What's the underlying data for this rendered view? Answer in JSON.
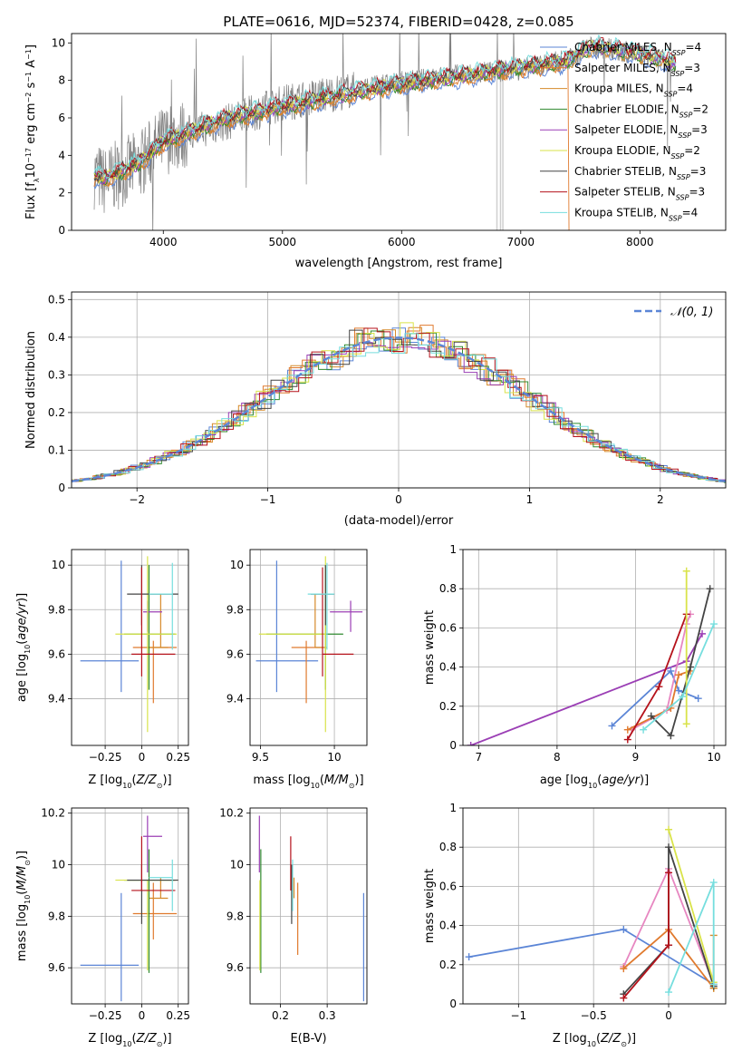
{
  "figure_title": "PLATE=0616, MJD=52374, FIBERID=0428, z=0.085",
  "colors": {
    "Chabrier MILES": "#5b85d6",
    "Salpeter MILES": "#e07a2e",
    "Kroupa MILES": "#d68a2a",
    "Chabrier ELODIE": "#2f8a2f",
    "Salpeter ELODIE": "#9b3fb5",
    "Kroupa ELODIE": "#d9e34a",
    "Chabrier STELIB": "#444444",
    "Salpeter STELIB": "#b5121b",
    "Kroupa STELIB": "#76dede",
    "data": "#808080",
    "pink": "#e787c1",
    "gaussian": "#5b85d6"
  },
  "legend_spec": [
    {
      "label": "Chabrier MILES, N",
      "sub": "SSP",
      "suffix": "=4",
      "key": "Chabrier MILES"
    },
    {
      "label": "Salpeter MILES, N",
      "sub": "SSP",
      "suffix": "=3",
      "key": "Salpeter MILES"
    },
    {
      "label": "Kroupa MILES, N",
      "sub": "SSP",
      "suffix": "=4",
      "key": "Kroupa MILES"
    },
    {
      "label": "Chabrier ELODIE, N",
      "sub": "SSP",
      "suffix": "=2",
      "key": "Chabrier ELODIE"
    },
    {
      "label": "Salpeter ELODIE, N",
      "sub": "SSP",
      "suffix": "=3",
      "key": "Salpeter ELODIE"
    },
    {
      "label": "Kroupa ELODIE, N",
      "sub": "SSP",
      "suffix": "=2",
      "key": "Kroupa ELODIE"
    },
    {
      "label": "Chabrier STELIB, N",
      "sub": "SSP",
      "suffix": "=3",
      "key": "Chabrier STELIB"
    },
    {
      "label": "Salpeter STELIB, N",
      "sub": "SSP",
      "suffix": "=3",
      "key": "Salpeter STELIB"
    },
    {
      "label": "Kroupa STELIB, N",
      "sub": "SSP",
      "suffix": "=4",
      "key": "Kroupa STELIB"
    }
  ],
  "chart_data": [
    {
      "id": "spectrum",
      "type": "line",
      "title": "PLATE=0616, MJD=52374, FIBERID=0428, z=0.085",
      "xlabel": "wavelength [Angstrom, rest frame]",
      "ylabel": "Flux [f_λ 10^-17 erg cm^-2 s^-1 A^-1]",
      "xlim": [
        3230,
        8720
      ],
      "ylim": [
        0,
        10.5
      ],
      "xticks": [
        4000,
        5000,
        6000,
        7000,
        8000
      ],
      "yticks": [
        0,
        2,
        4,
        6,
        8,
        10
      ],
      "grid": false,
      "legend": "upper right",
      "data_trend": {
        "x": [
          3420,
          3500,
          3800,
          4000,
          4500,
          5000,
          5500,
          6000,
          6500,
          7000,
          7400,
          7600,
          8000,
          8300
        ],
        "y": [
          3.0,
          2.6,
          3.5,
          4.8,
          5.7,
          6.8,
          7.4,
          7.9,
          8.3,
          8.6,
          9.1,
          9.8,
          9.4,
          8.9
        ]
      },
      "model_trend": {
        "x": [
          3420,
          3500,
          3800,
          4000,
          4500,
          5000,
          5500,
          6000,
          6500,
          7000,
          7400
        ],
        "y": [
          2.9,
          2.7,
          3.6,
          4.7,
          5.9,
          6.6,
          7.2,
          7.8,
          8.2,
          8.7,
          9.0
        ]
      },
      "mask_lines": [
        6800,
        6830,
        6850
      ]
    },
    {
      "id": "residuals",
      "type": "histogram",
      "xlabel": "(data-model)/error",
      "ylabel": "Normed distribution",
      "xlim": [
        -2.5,
        2.5
      ],
      "ylim": [
        0,
        0.52
      ],
      "xticks": [
        -2,
        -1,
        0,
        1,
        2
      ],
      "yticks": [
        0,
        0.1,
        0.2,
        0.3,
        0.4,
        0.5
      ],
      "grid": true,
      "legend_label": "𝒩(0, 1)",
      "legend": "upper right",
      "gaussian": {
        "mean": 0,
        "sigma": 1
      }
    },
    {
      "id": "age_vs_Z",
      "type": "errorbar",
      "xlabel": "Z [log10(Z/Z⊙)]",
      "ylabel": "age [log10(age/yr)]",
      "xlim": [
        -0.48,
        0.32
      ],
      "ylim": [
        9.19,
        10.07
      ],
      "xticks": [
        -0.25,
        0.0,
        0.25
      ],
      "yticks": [
        9.4,
        9.6,
        9.8,
        10.0
      ],
      "grid": true,
      "points": [
        {
          "key": "Chabrier MILES",
          "x": -0.14,
          "y": 9.57,
          "xerr": [
            0.28,
            0.12
          ],
          "yerr": [
            0.14,
            0.45
          ]
        },
        {
          "key": "Salpeter MILES",
          "x": 0.08,
          "y": 9.63,
          "xerr": [
            0.14,
            0.16
          ],
          "yerr": [
            0.25,
            0.03
          ]
        },
        {
          "key": "Kroupa MILES",
          "x": 0.13,
          "y": 9.63,
          "xerr": [
            0.08,
            0.05
          ],
          "yerr": [
            0.0,
            0.24
          ]
        },
        {
          "key": "Chabrier ELODIE",
          "x": 0.05,
          "y": 9.69,
          "xerr": [
            0.17,
            0.18
          ],
          "yerr": [
            0.25,
            0.31
          ]
        },
        {
          "key": "Salpeter ELODIE",
          "x": 0.04,
          "y": 9.79,
          "xerr": [
            0.03,
            0.1
          ],
          "yerr": [
            0.09,
            0.05
          ]
        },
        {
          "key": "Kroupa ELODIE",
          "x": 0.04,
          "y": 9.69,
          "xerr": [
            0.22,
            0.2
          ],
          "yerr": [
            0.44,
            0.35
          ]
        },
        {
          "key": "Chabrier STELIB",
          "x": 0.0,
          "y": 9.87,
          "xerr": [
            0.1,
            0.25
          ],
          "yerr": [
            0.14,
            0.13
          ]
        },
        {
          "key": "Salpeter STELIB",
          "x": 0.0,
          "y": 9.6,
          "xerr": [
            0.07,
            0.23
          ],
          "yerr": [
            0.1,
            0.39
          ]
        },
        {
          "key": "Kroupa STELIB",
          "x": 0.21,
          "y": 9.87,
          "xerr": [
            0.16,
            0.0
          ],
          "yerr": [
            0.25,
            0.14
          ]
        }
      ]
    },
    {
      "id": "age_vs_mass",
      "type": "errorbar",
      "xlabel": "mass [log10(M/M⊙)]",
      "ylabel": "",
      "xlim": [
        9.43,
        10.22
      ],
      "ylim": [
        9.19,
        10.07
      ],
      "xticks": [
        9.5,
        10.0
      ],
      "yticks": [
        9.4,
        9.6,
        9.8,
        10.0
      ],
      "grid": true,
      "points": [
        {
          "key": "Chabrier MILES",
          "x": 9.61,
          "y": 9.57,
          "xerr": [
            0.14,
            0.28
          ],
          "yerr": [
            0.14,
            0.45
          ]
        },
        {
          "key": "Salpeter MILES",
          "x": 9.81,
          "y": 9.63,
          "xerr": [
            0.1,
            0.12
          ],
          "yerr": [
            0.25,
            0.03
          ]
        },
        {
          "key": "Kroupa MILES",
          "x": 9.87,
          "y": 9.63,
          "xerr": [
            0.0,
            0.08
          ],
          "yerr": [
            0.0,
            0.24
          ]
        },
        {
          "key": "Chabrier ELODIE",
          "x": 9.94,
          "y": 9.69,
          "xerr": [
            0.4,
            0.12
          ],
          "yerr": [
            0.25,
            0.31
          ]
        },
        {
          "key": "Salpeter ELODIE",
          "x": 10.11,
          "y": 9.79,
          "xerr": [
            0.14,
            0.08
          ],
          "yerr": [
            0.09,
            0.05
          ]
        },
        {
          "key": "Kroupa ELODIE",
          "x": 9.94,
          "y": 9.69,
          "xerr": [
            0.45,
            0.0
          ],
          "yerr": [
            0.44,
            0.35
          ]
        },
        {
          "key": "Chabrier STELIB",
          "x": 9.94,
          "y": 9.87,
          "xerr": [
            0.1,
            0.06
          ],
          "yerr": [
            0.14,
            0.13
          ]
        },
        {
          "key": "Salpeter STELIB",
          "x": 9.92,
          "y": 9.6,
          "xerr": [
            0.0,
            0.21
          ],
          "yerr": [
            0.1,
            0.39
          ]
        },
        {
          "key": "Kroupa STELIB",
          "x": 9.95,
          "y": 9.87,
          "xerr": [
            0.13,
            0.05
          ],
          "yerr": [
            0.25,
            0.14
          ]
        }
      ]
    },
    {
      "id": "weight_vs_age",
      "type": "line",
      "xlabel": "age [log10(age/yr)]",
      "ylabel": "mass weight",
      "xlim": [
        6.8,
        10.15
      ],
      "ylim": [
        0,
        1
      ],
      "xticks": [
        7,
        8,
        9,
        10
      ],
      "yticks": [
        0.0,
        0.2,
        0.4,
        0.6,
        0.8,
        1.0
      ],
      "grid": true,
      "series": [
        {
          "key": "Salpeter ELODIE",
          "x": [
            6.9,
            9.65,
            9.85
          ],
          "y": [
            0.0,
            0.43,
            0.57
          ]
        },
        {
          "key": "Chabrier MILES",
          "x": [
            8.7,
            9.45,
            9.55,
            9.8
          ],
          "y": [
            0.1,
            0.38,
            0.28,
            0.24
          ]
        },
        {
          "key": "pink",
          "x": [
            8.95,
            9.4,
            9.65,
            9.7
          ],
          "y": [
            0.08,
            0.18,
            0.62,
            0.67
          ]
        },
        {
          "key": "Salpeter MILES",
          "x": [
            8.9,
            9.45,
            9.55,
            9.7
          ],
          "y": [
            0.08,
            0.19,
            0.36,
            0.38
          ]
        },
        {
          "key": "Chabrier STELIB",
          "x": [
            9.2,
            9.45,
            9.7,
            9.95
          ],
          "y": [
            0.15,
            0.05,
            0.4,
            0.8
          ]
        },
        {
          "key": "Salpeter STELIB",
          "x": [
            8.9,
            9.3,
            9.65
          ],
          "y": [
            0.03,
            0.3,
            0.67
          ]
        },
        {
          "key": "Kroupa ELODIE",
          "x": [
            9.65,
            9.65
          ],
          "y": [
            0.11,
            0.89
          ]
        },
        {
          "key": "Kroupa STELIB",
          "x": [
            9.1,
            9.6,
            10.0
          ],
          "y": [
            0.08,
            0.25,
            0.62
          ]
        }
      ]
    },
    {
      "id": "mass_vs_Z",
      "type": "errorbar",
      "xlabel": "Z [log10(Z/Z⊙)]",
      "ylabel": "mass [log10(M/M⊙)]",
      "xlim": [
        -0.48,
        0.32
      ],
      "ylim": [
        9.46,
        10.22
      ],
      "xticks": [
        -0.25,
        0.0,
        0.25
      ],
      "yticks": [
        9.6,
        9.8,
        10.0,
        10.2
      ],
      "grid": true,
      "points": [
        {
          "key": "Chabrier MILES",
          "x": -0.14,
          "y": 9.61,
          "xerr": [
            0.28,
            0.12
          ],
          "yerr": [
            0.14,
            0.28
          ]
        },
        {
          "key": "Salpeter MILES",
          "x": 0.08,
          "y": 9.81,
          "xerr": [
            0.14,
            0.16
          ],
          "yerr": [
            0.1,
            0.12
          ]
        },
        {
          "key": "Kroupa MILES",
          "x": 0.13,
          "y": 9.87,
          "xerr": [
            0.08,
            0.05
          ],
          "yerr": [
            0.0,
            0.08
          ]
        },
        {
          "key": "Chabrier ELODIE",
          "x": 0.05,
          "y": 9.94,
          "xerr": [
            0.17,
            0.18
          ],
          "yerr": [
            0.36,
            0.12
          ]
        },
        {
          "key": "Salpeter ELODIE",
          "x": 0.04,
          "y": 10.11,
          "xerr": [
            0.03,
            0.1
          ],
          "yerr": [
            0.14,
            0.08
          ]
        },
        {
          "key": "Kroupa ELODIE",
          "x": 0.04,
          "y": 9.94,
          "xerr": [
            0.22,
            0.2
          ],
          "yerr": [
            0.35,
            0.0
          ]
        },
        {
          "key": "Chabrier STELIB",
          "x": 0.0,
          "y": 9.94,
          "xerr": [
            0.1,
            0.25
          ],
          "yerr": [
            0.17,
            0.06
          ]
        },
        {
          "key": "Salpeter STELIB",
          "x": 0.0,
          "y": 9.9,
          "xerr": [
            0.07,
            0.23
          ],
          "yerr": [
            0.0,
            0.21
          ]
        },
        {
          "key": "Kroupa STELIB",
          "x": 0.21,
          "y": 9.95,
          "xerr": [
            0.16,
            0.0
          ],
          "yerr": [
            0.13,
            0.07
          ]
        }
      ]
    },
    {
      "id": "mass_vs_ebv",
      "type": "errorbar",
      "xlabel": "E(B-V)",
      "ylabel": "",
      "xlim": [
        0.135,
        0.385
      ],
      "ylim": [
        9.46,
        10.22
      ],
      "xticks": [
        0.2,
        0.3
      ],
      "yticks": [
        9.6,
        9.8,
        10.0,
        10.2
      ],
      "grid": true,
      "points": [
        {
          "key": "Chabrier MILES",
          "x": 0.378,
          "y": 9.61,
          "xerr": [
            0,
            0
          ],
          "yerr": [
            0.14,
            0.28
          ]
        },
        {
          "key": "Salpeter MILES",
          "x": 0.237,
          "y": 9.81,
          "xerr": [
            0,
            0
          ],
          "yerr": [
            0.16,
            0.12
          ]
        },
        {
          "key": "Kroupa MILES",
          "x": 0.229,
          "y": 9.87,
          "xerr": [
            0,
            0
          ],
          "yerr": [
            0.0,
            0.08
          ]
        },
        {
          "key": "Chabrier ELODIE",
          "x": 0.158,
          "y": 9.94,
          "xerr": [
            0,
            0
          ],
          "yerr": [
            0.36,
            0.12
          ]
        },
        {
          "key": "Salpeter ELODIE",
          "x": 0.155,
          "y": 10.11,
          "xerr": [
            0,
            0
          ],
          "yerr": [
            0.14,
            0.08
          ]
        },
        {
          "key": "Kroupa ELODIE",
          "x": 0.156,
          "y": 9.94,
          "xerr": [
            0,
            0
          ],
          "yerr": [
            0.35,
            0.0
          ]
        },
        {
          "key": "Chabrier STELIB",
          "x": 0.224,
          "y": 9.94,
          "xerr": [
            0,
            0
          ],
          "yerr": [
            0.17,
            0.06
          ]
        },
        {
          "key": "Salpeter STELIB",
          "x": 0.222,
          "y": 9.9,
          "xerr": [
            0,
            0
          ],
          "yerr": [
            0.0,
            0.21
          ]
        },
        {
          "key": "Kroupa STELIB",
          "x": 0.226,
          "y": 9.95,
          "xerr": [
            0,
            0
          ],
          "yerr": [
            0.13,
            0.07
          ]
        }
      ]
    },
    {
      "id": "weight_vs_Z",
      "type": "line",
      "xlabel": "Z [log10(Z/Z⊙)]",
      "ylabel": "mass weight",
      "xlim": [
        -1.37,
        0.38
      ],
      "ylim": [
        0,
        1
      ],
      "xticks": [
        -1.0,
        -0.5,
        0.0
      ],
      "yticks": [
        0.0,
        0.2,
        0.4,
        0.6,
        0.8,
        1.0
      ],
      "grid": true,
      "series": [
        {
          "key": "Chabrier MILES",
          "x": [
            -1.33,
            -0.3,
            0.3
          ],
          "y": [
            0.24,
            0.38,
            0.1
          ]
        },
        {
          "key": "pink",
          "x": [
            -0.3,
            0.0,
            0.3
          ],
          "y": [
            0.19,
            0.69,
            0.1
          ]
        },
        {
          "key": "Salpeter MILES",
          "x": [
            -0.3,
            0.0,
            0.3
          ],
          "y": [
            0.18,
            0.38,
            0.08
          ]
        },
        {
          "key": "Kroupa MILES",
          "x": [
            0.3,
            0.3
          ],
          "y": [
            0.08,
            0.35
          ]
        },
        {
          "key": "Chabrier STELIB",
          "x": [
            -0.3,
            0.0,
            0.0,
            0.3
          ],
          "y": [
            0.05,
            0.3,
            0.8,
            0.09
          ]
        },
        {
          "key": "Salpeter STELIB",
          "x": [
            -0.3,
            0.0,
            0.0
          ],
          "y": [
            0.03,
            0.3,
            0.67
          ]
        },
        {
          "key": "Kroupa ELODIE",
          "x": [
            0.0,
            0.3
          ],
          "y": [
            0.89,
            0.11
          ]
        },
        {
          "key": "Kroupa STELIB",
          "x": [
            0.0,
            0.3,
            0.3
          ],
          "y": [
            0.06,
            0.62,
            0.1
          ]
        }
      ]
    }
  ]
}
